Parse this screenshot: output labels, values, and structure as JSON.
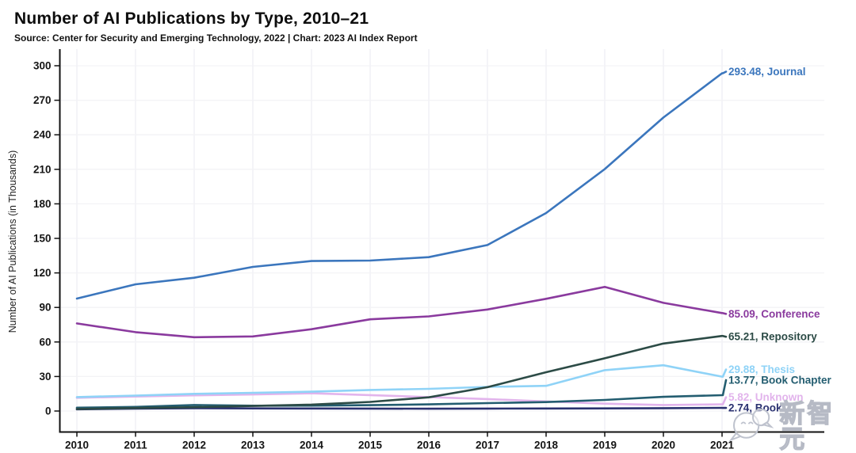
{
  "header": {
    "title": "Number of AI Publications by Type, 2010–21",
    "subtitle": "Source: Center for Security and Emerging Technology, 2022 | Chart: 2023 AI Index Report"
  },
  "watermark": {
    "text": "新智元",
    "logo": "speech-bubbles-logo"
  },
  "chart_data": {
    "type": "line",
    "title": "Number of AI Publications by Type, 2010–21",
    "xlabel": "",
    "ylabel": "Number of AI Publications (in Thousands)",
    "categories": [
      "2010",
      "2011",
      "2012",
      "2013",
      "2014",
      "2015",
      "2016",
      "2017",
      "2018",
      "2019",
      "2020",
      "2021"
    ],
    "ylim": [
      0,
      300
    ],
    "yticks": [
      0,
      30,
      60,
      90,
      120,
      150,
      180,
      210,
      240,
      270,
      300
    ],
    "grid": true,
    "legend_position": "right-end-labels",
    "colors": {
      "axis": "#111111",
      "grid_vertical": "#efeff4",
      "grid_horizontal": "#f3f3f6"
    },
    "series": [
      {
        "name": "Journal",
        "color": "#3b76bd",
        "end_label": "293.48, Journal",
        "values": [
          97.7,
          110.1,
          115.8,
          125.2,
          130.3,
          130.7,
          133.7,
          144.2,
          172.0,
          210.2,
          255.0,
          293.48
        ]
      },
      {
        "name": "Conference",
        "color": "#8a3a9e",
        "end_label": "85.09, Conference",
        "values": [
          76.1,
          68.5,
          64.1,
          64.8,
          71.1,
          79.7,
          82.2,
          88.2,
          97.5,
          107.8,
          94.0,
          85.09
        ]
      },
      {
        "name": "Repository",
        "color": "#2c4b46",
        "end_label": "65.21, Repository",
        "values": [
          1.8,
          2.6,
          3.3,
          4.4,
          5.6,
          7.9,
          11.9,
          20.7,
          33.7,
          45.8,
          58.6,
          65.21
        ]
      },
      {
        "name": "Thesis",
        "color": "#8fd3f7",
        "end_label": "29.88, Thesis",
        "values": [
          12.1,
          13.4,
          14.9,
          15.8,
          16.8,
          18.3,
          19.3,
          21.0,
          21.9,
          35.5,
          39.8,
          29.88
        ]
      },
      {
        "name": "Book Chapter",
        "color": "#235d70",
        "end_label": "13.77, Book Chapter",
        "values": [
          2.9,
          3.6,
          5.2,
          4.6,
          4.7,
          5.1,
          5.8,
          6.9,
          7.8,
          9.6,
          12.3,
          13.77
        ]
      },
      {
        "name": "Unknown",
        "color": "#e2b4ec",
        "end_label": "5.82, Unknown",
        "values": [
          11.5,
          12.6,
          13.6,
          14.4,
          15.4,
          13.8,
          12.1,
          10.4,
          8.3,
          6.4,
          5.2,
          5.82
        ]
      },
      {
        "name": "Book",
        "color": "#2a3170",
        "end_label": "2.74, Book",
        "values": [
          1.5,
          2.1,
          2.5,
          2.3,
          2.2,
          2.1,
          2.0,
          2.1,
          2.2,
          2.3,
          2.5,
          2.74
        ]
      }
    ]
  }
}
